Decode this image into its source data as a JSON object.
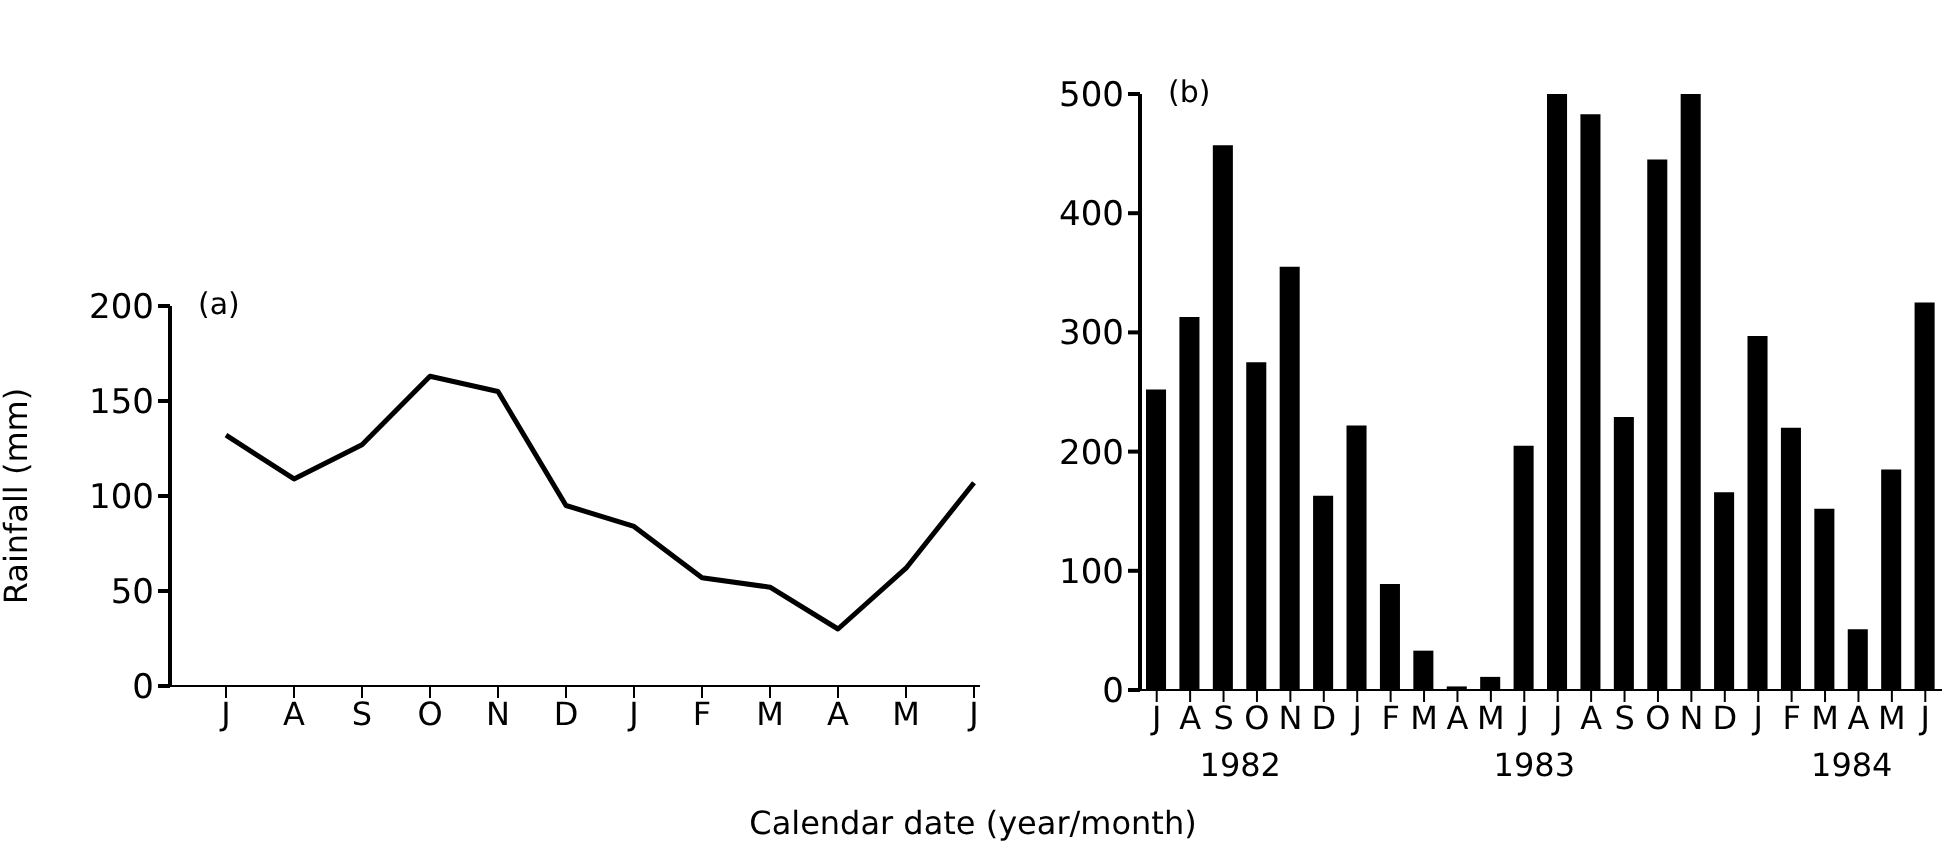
{
  "chart_data": [
    {
      "type": "line",
      "title": "(a)",
      "ylabel": "Rainfall (mm)",
      "categories": [
        "J",
        "A",
        "S",
        "O",
        "N",
        "D",
        "J",
        "F",
        "M",
        "A",
        "M",
        "J"
      ],
      "series": [
        {
          "color": "#000000",
          "values": [
            132,
            109,
            127,
            163,
            155,
            95,
            84,
            57,
            52,
            30,
            62,
            107
          ]
        }
      ],
      "ylim": [
        0,
        200
      ],
      "yticks": [
        0,
        50,
        100,
        150,
        200
      ],
      "marker": "none",
      "line_style": "solid"
    },
    {
      "type": "bar",
      "title": "(b)",
      "xlabel": "Calendar date (year/month)",
      "categories": [
        "J",
        "A",
        "S",
        "O",
        "N",
        "D",
        "J",
        "F",
        "M",
        "A",
        "M",
        "J",
        "J",
        "A",
        "S",
        "O",
        "N",
        "D",
        "J",
        "F",
        "M",
        "A",
        "M",
        "J"
      ],
      "series": [
        {
          "color": "#000000",
          "values": [
            252,
            313,
            457,
            275,
            355,
            163,
            222,
            89,
            33,
            3,
            11,
            205,
            500,
            483,
            229,
            445,
            500,
            166,
            297,
            220,
            152,
            51,
            185,
            325
          ]
        }
      ],
      "ylim": [
        0,
        500
      ],
      "yticks": [
        0,
        100,
        200,
        300,
        400,
        500
      ],
      "annotations": [
        "1982",
        "1983",
        "1984"
      ]
    }
  ]
}
